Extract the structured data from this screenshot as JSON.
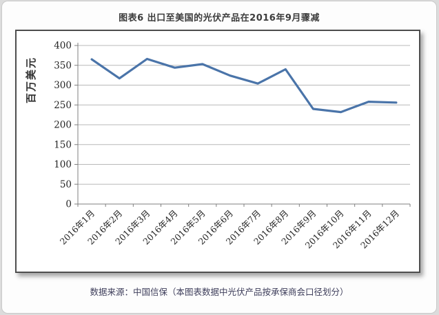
{
  "page": {
    "title": "图表6  出口至美国的光伏产品在2016年9月骤减",
    "source_note": "数据来源：中国信保（本图表数据中光伏产品按承保商会口径划分）"
  },
  "colors": {
    "line": "#4a74a9",
    "gridline": "#b8b8b8",
    "axis": "#7f7f7f",
    "frame_border": "#4d4d4d",
    "source_text": "#3d3d5a"
  },
  "chart_data": {
    "type": "line",
    "title": "图表6  出口至美国的光伏产品在2016年9月骤减",
    "xlabel": "",
    "ylabel": "百万美元",
    "categories": [
      "2016年1月",
      "2016年2月",
      "2016年3月",
      "2016年4月",
      "2016年5月",
      "2016年6月",
      "2016年7月",
      "2016年8月",
      "2016年9月",
      "2016年10月",
      "2016年11月",
      "2016年12月"
    ],
    "values": [
      365,
      317,
      366,
      344,
      353,
      324,
      304,
      340,
      240,
      232,
      258,
      256
    ],
    "ylim": [
      0,
      400
    ],
    "ytick_step": 50,
    "grid": true,
    "legend": false
  }
}
